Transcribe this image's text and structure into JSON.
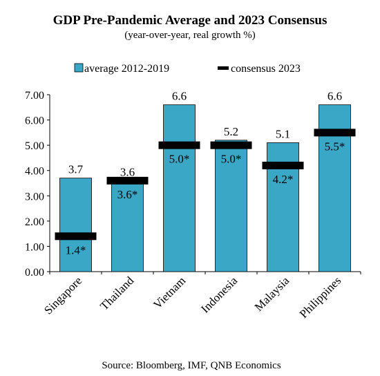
{
  "chart_data": {
    "type": "bar",
    "title": "GDP Pre-Pandemic Average and 2023 Consensus",
    "subtitle": "(year-over-year, real growth %)",
    "source": "Source: Bloomberg, IMF, QNB Economics",
    "categories": [
      "Singapore",
      "Thailand",
      "Vietnam",
      "Indonesia",
      "Malaysia",
      "Philippines"
    ],
    "series": [
      {
        "name": "average 2012-2019",
        "type": "bar",
        "values": [
          3.7,
          3.6,
          6.6,
          5.2,
          5.1,
          6.6
        ],
        "labels": [
          "3.7",
          "3.6",
          "6.6",
          "5.2",
          "5.1",
          "6.6"
        ]
      },
      {
        "name": "consensus 2023",
        "type": "marker",
        "values": [
          1.4,
          3.6,
          5.0,
          5.0,
          4.2,
          5.5
        ],
        "labels": [
          "1.4*",
          "3.6*",
          "5.0*",
          "5.0*",
          "4.2*",
          "5.5*"
        ]
      }
    ],
    "ylim": [
      0,
      7
    ],
    "yticks": [
      "0.00",
      "1.00",
      "2.00",
      "3.00",
      "4.00",
      "5.00",
      "6.00",
      "7.00"
    ],
    "xlabel": "",
    "ylabel": "",
    "grid": false,
    "legend_position": "top",
    "colors": {
      "bar": "#3aa7c6",
      "marker": "#000000"
    }
  }
}
